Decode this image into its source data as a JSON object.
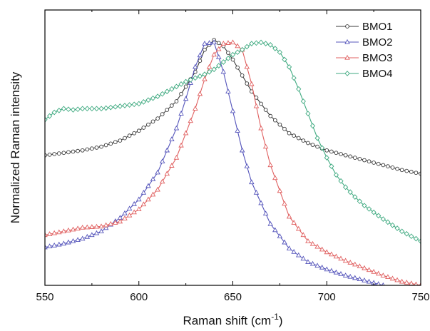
{
  "chart_data": {
    "type": "line",
    "title": "",
    "xlabel": "Raman shift (cm",
    "xlabel_sup": "-1",
    "xlabel_end": ")",
    "ylabel": "Normalized Raman intensity",
    "xlim": [
      550,
      750
    ],
    "ylim": [
      0,
      1
    ],
    "xticks": [
      550,
      600,
      650,
      700,
      750
    ],
    "grid": false,
    "legend_position": "top-right",
    "series": [
      {
        "name": "BMO1",
        "color": "#3a3a3a",
        "marker": "circle",
        "x": [
          550,
          560,
          570,
          580,
          590,
          600,
          610,
          620,
          630,
          635,
          640,
          645,
          650,
          660,
          670,
          680,
          690,
          700,
          710,
          720,
          730,
          740,
          750
        ],
        "y": [
          0.53,
          0.54,
          0.55,
          0.565,
          0.59,
          0.63,
          0.68,
          0.75,
          0.87,
          0.96,
          1.0,
          0.975,
          0.92,
          0.79,
          0.69,
          0.62,
          0.58,
          0.55,
          0.53,
          0.51,
          0.49,
          0.47,
          0.455
        ]
      },
      {
        "name": "BMO2",
        "color": "#5555bb",
        "marker": "triangle",
        "x": [
          550,
          560,
          570,
          580,
          590,
          600,
          610,
          620,
          625,
          630,
          635,
          640,
          645,
          650,
          655,
          660,
          670,
          680,
          690,
          700,
          710,
          720,
          730
        ],
        "y": [
          0.155,
          0.17,
          0.19,
          0.22,
          0.275,
          0.35,
          0.46,
          0.64,
          0.76,
          0.89,
          0.985,
          0.99,
          0.87,
          0.71,
          0.55,
          0.42,
          0.25,
          0.15,
          0.095,
          0.065,
          0.04,
          0.02,
          0.0
        ]
      },
      {
        "name": "BMO3",
        "color": "#e06060",
        "marker": "triangle",
        "x": [
          550,
          560,
          570,
          580,
          590,
          600,
          610,
          620,
          630,
          635,
          640,
          645,
          650,
          655,
          660,
          665,
          670,
          680,
          690,
          700,
          710,
          720,
          730,
          740,
          750
        ],
        "y": [
          0.205,
          0.22,
          0.235,
          0.24,
          0.26,
          0.31,
          0.39,
          0.52,
          0.72,
          0.84,
          0.94,
          0.985,
          0.99,
          0.96,
          0.82,
          0.64,
          0.49,
          0.28,
          0.18,
          0.135,
          0.1,
          0.07,
          0.04,
          0.015,
          0.0
        ]
      },
      {
        "name": "BMO4",
        "color": "#3faa80",
        "marker": "diamond",
        "x": [
          550,
          555,
          560,
          565,
          570,
          575,
          580,
          585,
          590,
          595,
          600,
          605,
          610,
          615,
          620,
          625,
          630,
          635,
          640,
          645,
          650,
          655,
          660,
          665,
          670,
          675,
          680,
          685,
          690,
          695,
          700,
          705,
          710,
          715,
          720,
          730,
          740,
          750
        ],
        "y": [
          0.675,
          0.705,
          0.72,
          0.715,
          0.72,
          0.72,
          0.72,
          0.725,
          0.73,
          0.735,
          0.74,
          0.755,
          0.77,
          0.79,
          0.81,
          0.83,
          0.845,
          0.86,
          0.88,
          0.91,
          0.94,
          0.96,
          0.985,
          0.99,
          0.98,
          0.95,
          0.89,
          0.8,
          0.7,
          0.6,
          0.52,
          0.45,
          0.4,
          0.36,
          0.325,
          0.27,
          0.22,
          0.18
        ]
      }
    ]
  }
}
